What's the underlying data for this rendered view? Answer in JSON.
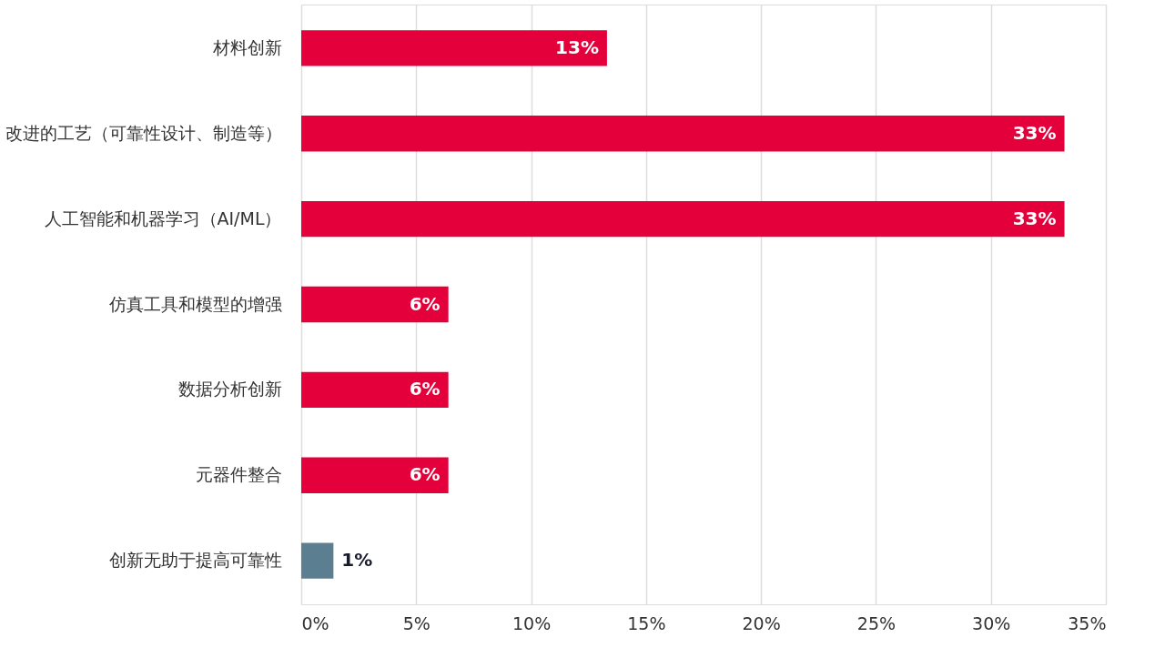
{
  "chart_data": {
    "type": "bar",
    "orientation": "horizontal",
    "categories": [
      "材料创新",
      "改进的工艺（可靠性设计、制造等）",
      "人工智能和机器学习（AI/ML）",
      "仿真工具和模型的增强",
      "数据分析创新",
      "元器件整合",
      "创新无助于提高可靠性"
    ],
    "values": [
      13.3,
      33.2,
      33.2,
      6.4,
      6.4,
      6.4,
      1.4
    ],
    "value_labels": [
      "13%",
      "33%",
      "33%",
      "6%",
      "6%",
      "6%",
      "1%"
    ],
    "colors": [
      "#e4003a",
      "#e4003a",
      "#e4003a",
      "#e4003a",
      "#e4003a",
      "#e4003a",
      "#5b7f91"
    ],
    "xlim": [
      0,
      35
    ],
    "xticks": [
      {
        "value": 0,
        "label": "0%"
      },
      {
        "value": 5,
        "label": "5%"
      },
      {
        "value": 10,
        "label": "10%"
      },
      {
        "value": 15,
        "label": "15%"
      },
      {
        "value": 20,
        "label": "20%"
      },
      {
        "value": 25,
        "label": "25%"
      },
      {
        "value": 30,
        "label": "30%"
      },
      {
        "value": 35,
        "label": "35%"
      }
    ],
    "grid": "x"
  }
}
